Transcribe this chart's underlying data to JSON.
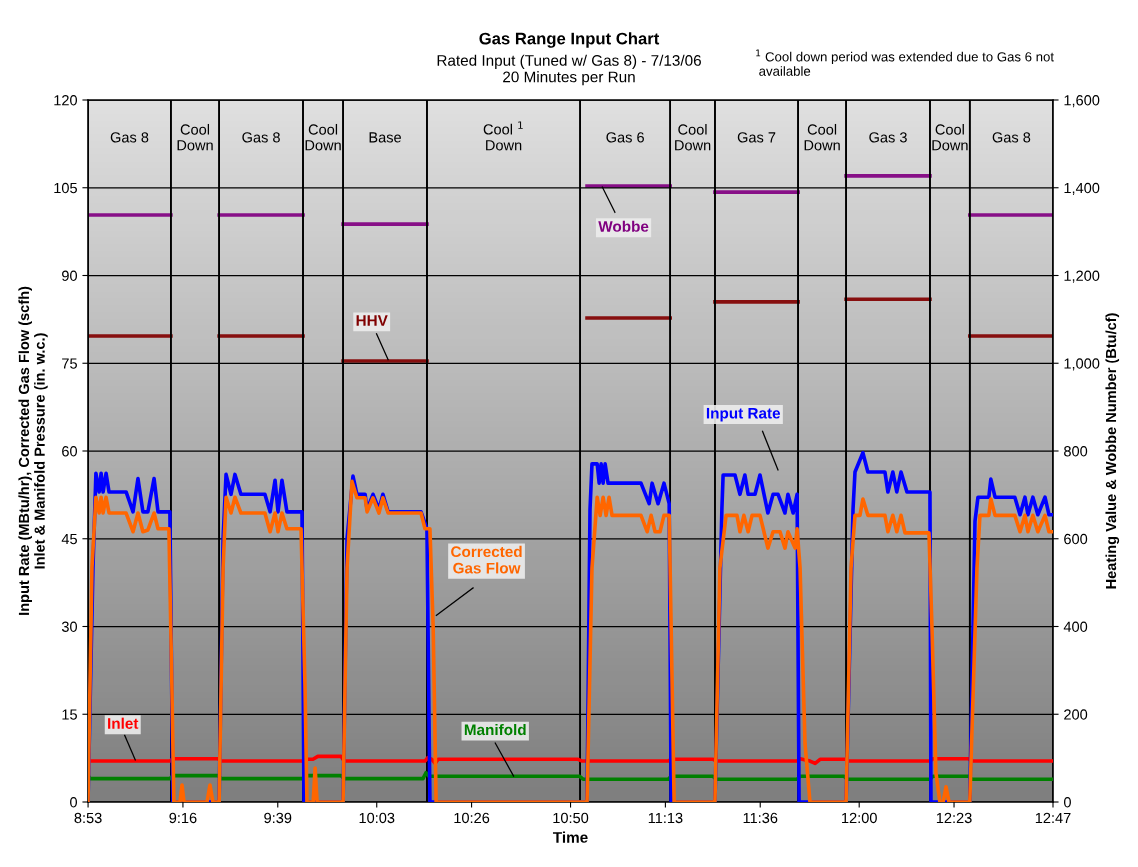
{
  "chart_data": {
    "type": "line",
    "title": "Gas Range Input Chart",
    "subtitle": "Rated Input (Tuned w/ Gas 8) - 7/13/06\n20 Minutes per Run",
    "xlabel": "Time",
    "ylabel": "Input Rate (MBtu/hr), Corrected Gas Flow (scfh)\nInlet & Manifold Pressure (in. w.c.)",
    "y2label": "Heating Value & Wobbe Number (Btu/cf)",
    "annotations": [
      "$^{1}$ Cool down period was extended due to Gas 6 not\n available"
    ],
    "xlim": [
      8.883,
      12.7833
    ],
    "xticks": [
      {
        "value": 8.8833,
        "label": "8:53"
      },
      {
        "value": 9.2667,
        "label": "9:16"
      },
      {
        "value": 9.65,
        "label": "9:39"
      },
      {
        "value": 10.05,
        "label": "10:03"
      },
      {
        "value": 10.4333,
        "label": "10:26"
      },
      {
        "value": 10.8333,
        "label": "10:50"
      },
      {
        "value": 11.2167,
        "label": "11:13"
      },
      {
        "value": 11.6,
        "label": "11:36"
      },
      {
        "value": 12.0,
        "label": "12:00"
      },
      {
        "value": 12.3833,
        "label": "12:23"
      },
      {
        "value": 12.7833,
        "label": "12:47"
      }
    ],
    "ylim": [
      0,
      120
    ],
    "yticks": [
      0,
      15,
      30,
      45,
      60,
      75,
      90,
      105,
      120
    ],
    "y2lim": [
      0,
      1600
    ],
    "y2ticks": [
      0,
      200,
      400,
      600,
      800,
      {
        "value": 1000,
        "label": "1,000"
      },
      {
        "value": 1200,
        "label": "1,200"
      },
      {
        "value": 1400,
        "label": "1,400"
      },
      {
        "value": 1600,
        "label": "1,600"
      }
    ],
    "grid": "y",
    "legend": false,
    "marker": "none",
    "line_style": "solid",
    "bands": [
      {
        "axis": "x",
        "from": 8.8833,
        "to": 9.218,
        "label": "Gas 8"
      },
      {
        "axis": "x",
        "from": 9.218,
        "to": 9.413,
        "label": "Cool\nDown"
      },
      {
        "axis": "x",
        "from": 9.413,
        "to": 9.752,
        "label": "Gas 8"
      },
      {
        "axis": "x",
        "from": 9.752,
        "to": 9.914,
        "label": "Cool\nDown"
      },
      {
        "axis": "x",
        "from": 9.914,
        "to": 10.253,
        "label": "Base"
      },
      {
        "axis": "x",
        "from": 10.253,
        "to": 10.872,
        "label": "Cool $^{1}$\nDown"
      },
      {
        "axis": "x",
        "from": 10.872,
        "to": 11.236,
        "label": "Gas 6"
      },
      {
        "axis": "x",
        "from": 11.236,
        "to": 11.417,
        "label": "Cool\nDown"
      },
      {
        "axis": "x",
        "from": 11.417,
        "to": 11.753,
        "label": "Gas 7"
      },
      {
        "axis": "x",
        "from": 11.753,
        "to": 11.947,
        "label": "Cool\nDown"
      },
      {
        "axis": "x",
        "from": 11.947,
        "to": 12.286,
        "label": "Gas 3"
      },
      {
        "axis": "x",
        "from": 12.286,
        "to": 12.447,
        "label": "Cool\nDown"
      },
      {
        "axis": "x",
        "from": 12.447,
        "to": 12.7833,
        "label": "Gas 8"
      }
    ],
    "series": [
      {
        "name": "Input Rate",
        "color": "#0000ff",
        "x": [
          8.883,
          8.903,
          8.915,
          8.928,
          8.936,
          8.944,
          8.956,
          8.968,
          9.0,
          9.037,
          9.065,
          9.085,
          9.105,
          9.125,
          9.15,
          9.166,
          9.214,
          9.226,
          9.413,
          9.429,
          9.441,
          9.461,
          9.477,
          9.501,
          9.598,
          9.619,
          9.639,
          9.651,
          9.667,
          9.687,
          9.748,
          9.756,
          9.914,
          9.93,
          9.954,
          9.97,
          10.003,
          10.011,
          10.035,
          10.059,
          10.075,
          10.096,
          10.229,
          10.253,
          10.265,
          10.9,
          10.912,
          10.92,
          10.941,
          10.949,
          10.957,
          10.965,
          10.973,
          10.985,
          11.033,
          11.118,
          11.151,
          11.163,
          11.187,
          11.211,
          11.232,
          11.24,
          11.417,
          11.445,
          11.45,
          11.498,
          11.518,
          11.538,
          11.551,
          11.579,
          11.599,
          11.631,
          11.652,
          11.672,
          11.7,
          11.712,
          11.733,
          11.749,
          11.757,
          11.947,
          11.975,
          11.983,
          12.015,
          12.035,
          12.104,
          12.116,
          12.136,
          12.152,
          12.169,
          12.193,
          12.286,
          12.29,
          12.447,
          12.468,
          12.48,
          12.524,
          12.532,
          12.549,
          12.629,
          12.65,
          12.67,
          12.682,
          12.702,
          12.722,
          12.751,
          12.767,
          12.783
        ],
        "values": [
          0,
          40,
          56.2,
          53,
          56.2,
          53,
          56.2,
          53,
          53,
          53,
          49.6,
          55.3,
          49.6,
          49.6,
          55.3,
          49.6,
          49.6,
          0,
          0,
          45,
          56,
          52.6,
          56,
          52.6,
          52.6,
          49.6,
          55,
          49.6,
          55,
          49.6,
          49.6,
          0,
          0,
          45,
          55.7,
          52.6,
          52.6,
          50,
          52.6,
          50,
          52.6,
          49.6,
          49.6,
          46.7,
          0,
          0,
          50,
          57.8,
          57.8,
          54.5,
          57.8,
          54.5,
          57.8,
          54.5,
          54.5,
          54.5,
          51,
          54.5,
          51,
          54.5,
          51,
          0,
          0,
          50,
          55.9,
          55.9,
          52.6,
          55.9,
          52.6,
          52.6,
          55.9,
          49.4,
          52.6,
          52.6,
          49.4,
          52.6,
          49.4,
          52.6,
          0,
          0,
          50,
          56.4,
          59.7,
          56.4,
          56.4,
          53,
          56.4,
          53,
          56.4,
          53,
          53,
          0,
          0,
          48,
          52.1,
          52.1,
          55.2,
          52.1,
          52.1,
          49.1,
          52.1,
          49.1,
          52.1,
          49.1,
          52.1,
          49.1,
          49.1
        ]
      },
      {
        "name": "Corrected\nGas Flow",
        "color": "#ff6600",
        "x": [
          8.883,
          8.899,
          8.915,
          8.928,
          8.936,
          8.944,
          8.956,
          8.968,
          9.037,
          9.065,
          9.085,
          9.105,
          9.125,
          9.15,
          9.166,
          9.21,
          9.222,
          9.23,
          9.255,
          9.263,
          9.271,
          9.364,
          9.376,
          9.388,
          9.413,
          9.429,
          9.441,
          9.461,
          9.477,
          9.501,
          9.598,
          9.619,
          9.639,
          9.651,
          9.667,
          9.687,
          9.744,
          9.76,
          9.768,
          9.793,
          9.801,
          9.809,
          9.914,
          9.93,
          9.95,
          9.97,
          10.003,
          10.011,
          10.035,
          10.059,
          10.075,
          10.096,
          10.229,
          10.245,
          10.265,
          10.278,
          10.29,
          10.9,
          10.92,
          10.941,
          10.953,
          10.965,
          10.977,
          10.989,
          11.001,
          11.118,
          11.143,
          11.159,
          11.175,
          11.195,
          11.211,
          11.232,
          11.244,
          11.252,
          11.417,
          11.437,
          11.462,
          11.506,
          11.518,
          11.534,
          11.551,
          11.567,
          11.599,
          11.631,
          11.652,
          11.68,
          11.7,
          11.712,
          11.741,
          11.749,
          11.761,
          11.781,
          11.801,
          11.947,
          11.967,
          11.983,
          12.003,
          12.015,
          12.035,
          12.104,
          12.116,
          12.136,
          12.152,
          12.169,
          12.185,
          12.282,
          12.294,
          12.31,
          12.326,
          12.339,
          12.351,
          12.363,
          12.447,
          12.476,
          12.488,
          12.524,
          12.532,
          12.549,
          12.629,
          12.65,
          12.67,
          12.682,
          12.702,
          12.722,
          12.751,
          12.767,
          12.783
        ],
        "values": [
          0,
          40,
          52.1,
          49.4,
          52.1,
          49.4,
          52.1,
          49.4,
          49.4,
          46.2,
          49.4,
          46.2,
          46.5,
          49.4,
          46.7,
          46.7,
          20,
          0,
          0,
          2.9,
          0,
          0,
          2.9,
          0,
          0,
          40,
          52.1,
          49.4,
          52.1,
          49.4,
          49.4,
          46.2,
          49.4,
          46.2,
          49.4,
          46.7,
          46.7,
          20,
          0,
          0,
          5.8,
          0,
          0,
          40,
          54.8,
          52,
          52,
          49.6,
          52,
          49.4,
          52,
          49.4,
          49.4,
          46.7,
          46.7,
          30,
          0,
          0,
          40,
          52.1,
          49,
          52.1,
          49,
          52.1,
          49,
          49,
          46.2,
          49,
          46.2,
          46.2,
          49,
          49,
          20,
          0,
          0,
          40,
          49,
          49,
          46.2,
          49,
          46.2,
          49,
          49,
          43.4,
          46.2,
          46.2,
          43.4,
          46.2,
          43.4,
          46.7,
          40,
          10,
          0,
          0,
          40,
          49,
          49,
          51.8,
          49,
          49,
          46.2,
          49,
          46.2,
          49,
          46,
          46,
          30,
          5,
          0,
          0,
          2.6,
          0,
          0,
          40,
          49,
          49,
          51.8,
          49,
          49,
          46.2,
          49,
          46.2,
          49,
          46.2,
          49,
          46.2,
          46.2
        ]
      },
      {
        "name": "Inlet",
        "color": "#ff0000",
        "x": [
          8.883,
          9.214,
          9.226,
          9.409,
          9.421,
          9.748,
          9.764,
          9.792,
          9.812,
          9.906,
          9.918,
          10.245,
          10.257,
          10.273,
          10.286,
          10.298,
          10.864,
          10.88,
          11.228,
          11.24,
          11.409,
          11.421,
          11.749,
          11.761,
          11.801,
          11.822,
          11.842,
          11.947,
          11.951,
          12.286,
          12.298,
          12.443,
          12.455,
          12.783
        ],
        "values": [
          7.0,
          7.0,
          7.4,
          7.4,
          7.0,
          7.0,
          7.3,
          7.3,
          7.8,
          7.8,
          7.0,
          7.0,
          7.6,
          7.3,
          6.6,
          7.3,
          7.3,
          7.0,
          7.0,
          7.3,
          7.3,
          7.0,
          7.0,
          7.4,
          7.0,
          6.6,
          7.3,
          7.3,
          7.0,
          7.0,
          7.4,
          7.4,
          7.0,
          7.0
        ]
      },
      {
        "name": "Manifold",
        "color": "#008000",
        "x": [
          8.883,
          8.891,
          9.214,
          9.226,
          9.409,
          9.421,
          9.748,
          9.764,
          9.906,
          9.918,
          10.237,
          10.249,
          10.261,
          10.87,
          10.884,
          11.228,
          11.24,
          11.409,
          11.421,
          11.749,
          11.761,
          11.939,
          11.951,
          12.286,
          12.298,
          12.443,
          12.455,
          12.783
        ],
        "values": [
          4.6,
          4.0,
          4.0,
          4.5,
          4.5,
          4.0,
          4.0,
          4.5,
          4.5,
          4.0,
          4.0,
          5.0,
          4.4,
          4.4,
          3.9,
          3.9,
          4.4,
          4.4,
          3.9,
          3.9,
          4.4,
          4.4,
          3.9,
          3.9,
          4.4,
          4.4,
          3.9,
          3.9
        ]
      },
      {
        "name": "Wobbe",
        "color": "#800080",
        "axis": "y2",
        "x": [
          8.883,
          9.218,
          9.3,
          9.413,
          9.752,
          9.8,
          9.914,
          10.253,
          10.5,
          10.9,
          11.236,
          11.3,
          11.417,
          11.753,
          11.8,
          11.947,
          12.286,
          12.35,
          12.447,
          12.783
        ],
        "values": [
          1338,
          1338,
          null,
          1338,
          1338,
          null,
          1317,
          1317,
          null,
          1404,
          1404,
          null,
          1390,
          1390,
          null,
          1427,
          1427,
          null,
          1338,
          1338
        ]
      },
      {
        "name": "HHV",
        "color": "#800000",
        "axis": "y2",
        "x": [
          8.883,
          9.218,
          9.3,
          9.413,
          9.752,
          9.8,
          9.914,
          10.253,
          10.5,
          10.9,
          11.236,
          11.3,
          11.417,
          11.753,
          11.8,
          11.947,
          12.286,
          12.35,
          12.447,
          12.783
        ],
        "values": [
          1062,
          1062,
          null,
          1062,
          1062,
          null,
          1005,
          1005,
          null,
          1103,
          1103,
          null,
          1140,
          1140,
          null,
          1146,
          1146,
          null,
          1062,
          1062
        ]
      }
    ]
  }
}
